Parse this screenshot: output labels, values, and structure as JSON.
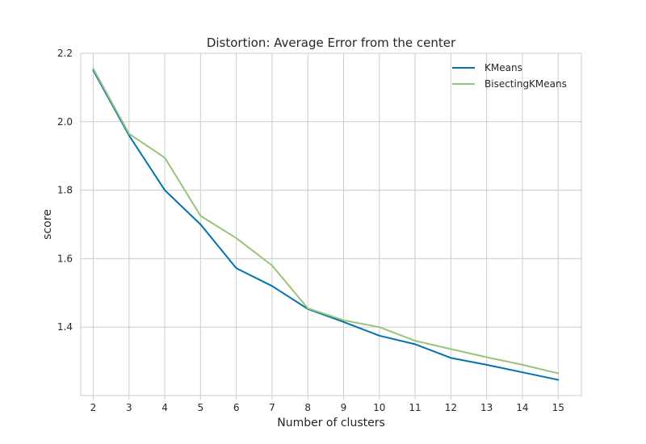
{
  "chart_data": {
    "type": "line",
    "title": "Distortion: Average Error from the center",
    "xlabel": "Number of clusters",
    "ylabel": "score",
    "x": [
      2,
      3,
      4,
      5,
      6,
      7,
      8,
      9,
      10,
      11,
      12,
      13,
      14,
      15
    ],
    "xlim": [
      1.65,
      15.65
    ],
    "ylim": [
      1.2,
      2.2
    ],
    "yticks": [
      1.4,
      1.6,
      1.8,
      2.0,
      2.2
    ],
    "ytick_labels": [
      "1.4",
      "1.6",
      "1.8",
      "2.0",
      "2.2"
    ],
    "grid": true,
    "legend_position": "top-right",
    "series": [
      {
        "name": "KMeans",
        "color": "#0072b2",
        "values": [
          2.15,
          1.96,
          1.8,
          1.7,
          1.572,
          1.52,
          1.453,
          1.415,
          1.375,
          1.35,
          1.31,
          1.29,
          1.268,
          1.246
        ]
      },
      {
        "name": "BisectingKMeans",
        "color": "#98c47a",
        "values": [
          2.155,
          1.965,
          1.895,
          1.725,
          1.66,
          1.58,
          1.455,
          1.42,
          1.4,
          1.36,
          1.336,
          1.312,
          1.29,
          1.265
        ]
      }
    ]
  }
}
